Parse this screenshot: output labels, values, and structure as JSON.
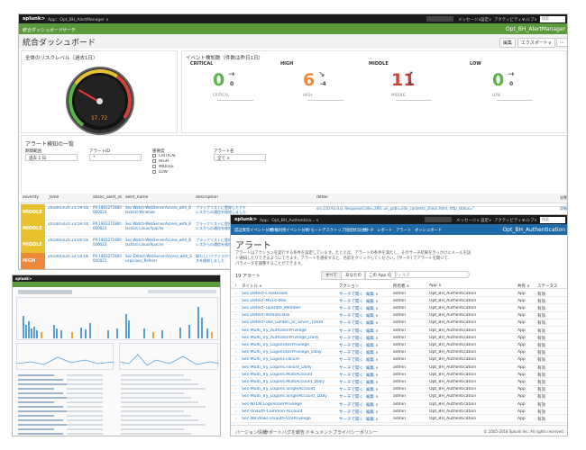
{
  "w1": {
    "logo": "splunk>",
    "app_menu": "App：Opt_BH_AlertManager ∨",
    "topbar_right": [
      "メッセージ∨",
      "設定∨",
      "アクティビティ∨",
      "ヘルプ∨"
    ],
    "search_placeholder": "検索",
    "nav": [
      "統合ダッシュボード",
      "サーチ"
    ],
    "app_title": "Opt_BH_AlertManager",
    "page_title": "統合ダッシュボード",
    "edit_btn": "編集",
    "export_btn": "エクスポート∨",
    "more_btn": "...",
    "gauge_panel_title": "全体のリスクレベル（過去1日）",
    "gauge_value": "17.72",
    "gauge_ticks": [
      "0",
      "10",
      "20",
      "30",
      "40",
      "50",
      "60",
      "70",
      "80",
      "90",
      "100"
    ],
    "kpi_panel_title": "イベント検知数（件数は昨日1日）",
    "kpis": [
      {
        "label": "CRITICAL",
        "value": "0",
        "delta": "0",
        "sub": "CRITICAL",
        "color": "#5ab548",
        "arrow": "→"
      },
      {
        "label": "HIGH",
        "value": "6",
        "delta": "-4",
        "sub": "HIGH",
        "color": "#f0883a",
        "arrow": "↘"
      },
      {
        "label": "MIDDLE",
        "value": "11",
        "delta": "6",
        "sub": "MIDDLE",
        "color": "#d0433a",
        "arrow": "↗"
      },
      {
        "label": "LOW",
        "value": "0",
        "delta": "0",
        "sub": "LOW",
        "color": "#5ab548",
        "arrow": "→"
      }
    ],
    "alerts_title": "アラート検知の一覧",
    "filters": {
      "time_label": "期間範囲",
      "time_value": "過去 1 日",
      "id_label": "アラートID",
      "id_value": "*",
      "severity_label": "重要度",
      "severity_options": [
        "CRITICAL",
        "HIGH",
        "MIDDLE",
        "LOW"
      ],
      "name_label": "アラート名",
      "name_value": "全て ×"
    },
    "table_headers": [
      "severity",
      "_time",
      "sbsec_alert_id",
      "alert_name",
      "description",
      "detail",
      "分析"
    ],
    "rows": [
      {
        "severity": "MIDDLE",
        "color": "#e8c22e",
        "time": "2018/03/20 23:59:00",
        "id": "PX-1803271800000024",
        "name": "Sec-Watch-WebServerAccess_with_Blacklist-Windows",
        "desc": "ブラックリストに登録したアドレスからの通信を検知しました",
        "detail": "src:210.93.0.0, ResponseCode=200, uri_path=/idx_contents_check.html, http_status=\"",
        "act": "詳細"
      },
      {
        "severity": "MIDDLE",
        "color": "#e8c22e",
        "time": "2018/03/20 23:59:00",
        "id": "PX-1803271800000023",
        "name": "Sec-Watch-WebServerAccess_with_Blacklist-Linux/Apache",
        "desc": "ブラックリストに登録したアドレスからの通信を検知しました",
        "detail": "",
        "act": ""
      },
      {
        "severity": "MIDDLE",
        "color": "#e8c22e",
        "time": "2018/03/20 23:00:00",
        "id": "PX-1803271800000022",
        "name": "Sec-Watch-WebServerAccess_with_Blacklist-Linux/Apache",
        "desc": "ブラックリストに登録したアドレスからの通信を検知しました",
        "detail": "",
        "act": ""
      },
      {
        "severity": "HIGH",
        "color": "#f0883a",
        "time": "2018/03/20 22:54:00",
        "id": "PX-1803271800000021",
        "name": "Sec-Detect-WebServerAccess_with_Suspicious_Referer",
        "desc": "疑わしいリファラからのアクセスを検知しました",
        "detail": "",
        "act": ""
      }
    ]
  },
  "w2": {
    "logo": "splunk>",
    "app_menu": "App：Opt_BH_Authentica... ∨",
    "topbar_right": [
      "メッセージ∨",
      "設定∨",
      "アクティビティ∨",
      "ヘルプ∨"
    ],
    "search_placeholder": "検索",
    "nav": [
      "認証異常イベント分析",
      "特権利用イベント分析",
      "リモートデスクトップ接続状況分析",
      "サーチ",
      "レポート",
      "アラート",
      "ダッシュボード"
    ],
    "app_title": "Opt_BH_Authentication",
    "page_title": "アラート",
    "desc_line1": "アラートはアクションを実行する条件を設定しています。たとえば、アラートの条件を満たし、そのサーチ結果をきっかけにメールを送",
    "desc_line2": "ト通知したりできるようにできます。アラートを選択すると、名前をクリックしてください。[サーチ] でアラートを開いて、",
    "desc_line3": "パラメータを調整することができます。",
    "count": "19 アラート",
    "filter_buttons": [
      "すべて",
      "あなたの",
      "この App の"
    ],
    "filter_placeholder": "フィルタ",
    "headers": [
      "i",
      "タイトル ∧",
      "アクション",
      "所有者 ∧",
      "App ∧",
      "共有 ∧",
      "ステータス"
    ],
    "action": "サーチで開く",
    "edit": "編集 ∨",
    "owner": "admin",
    "app": "Opt_BH_Authentication",
    "share": "App",
    "status": "有効",
    "alerts": [
      "Sec-Detect-CreateTask",
      "Sec-Detect-MS14-068",
      "Sec-Detect-Operate_Member",
      "Sec-Detect-RemoteTask",
      "Sec-Detect-Use_Golden_or_Silver_Ticket",
      "Sec-Multi_Try_AuthUserPrivilege",
      "Sec-Multi_Try_AuthUserPrivilege_Daily",
      "Sec-Multi_Try_LogonUserPrivilege",
      "Sec-Multi_Try_LogonUserPrivilege_Daily",
      "Sec-Multi_Try_Logons.Failure",
      "Sec-Multi_Try_Logons.Failure_Daily",
      "Sec-Multi_Try_Logons.MultiAccount",
      "Sec-Multi_Try_Logons.MultiAccount_Daily",
      "Sec-Multi_Try_Logons.SingleAccount",
      "Sec-Multi_Try_Logons.SingleAccount_Daily",
      "Sec-NTLM.LogonUserPrivilege",
      "Sec-Unauth-Common-Account",
      "Sec-Windows-Unauth-UsePrivilege"
    ],
    "footer_links": [
      "バージョン情報",
      "サポート",
      "バグを報告",
      "ドキュメント",
      "プライバシーポリシー"
    ],
    "copyright": "© 2005-2018 Splunk Inc. All rights reserved."
  },
  "w3": {
    "logo": "splunk>"
  }
}
